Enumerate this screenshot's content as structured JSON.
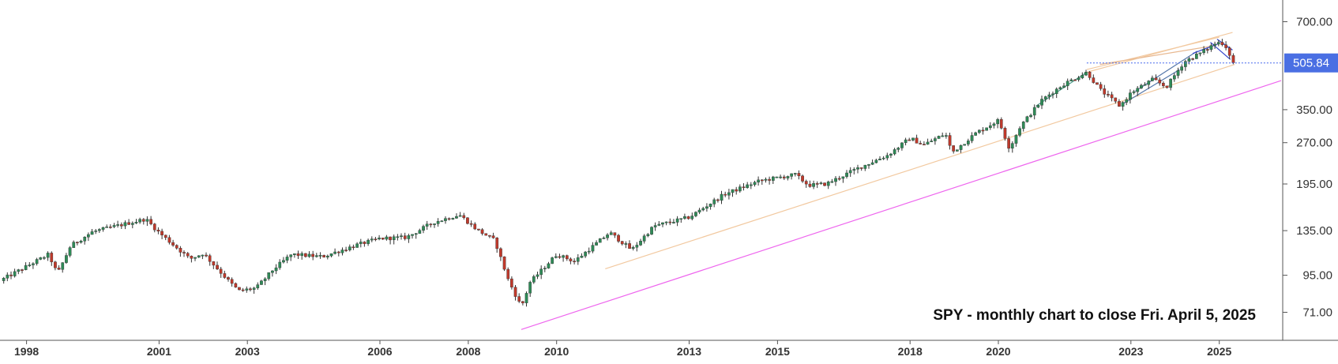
{
  "chart_data": {
    "type": "candlestick",
    "title": "",
    "annotation": "SPY - monthly chart to close Fri. April 5, 2025",
    "y_scale": "log",
    "ylim": [
      58,
      800
    ],
    "xlim": [
      1997.4,
      2026.4
    ],
    "y_ticks": [
      700,
      505.84,
      350,
      270,
      195,
      135,
      95,
      71
    ],
    "y_tick_labels": [
      "700.00",
      "505.84",
      "350.00",
      "270.00",
      "195.00",
      "135.00",
      "95.00",
      "71.00"
    ],
    "x_ticks": [
      1998,
      2001,
      2003,
      2006,
      2008,
      2010,
      2013,
      2015,
      2018,
      2020,
      2023,
      2025
    ],
    "x_tick_labels": [
      "1998",
      "2001",
      "2003",
      "2006",
      "2008",
      "2010",
      "2013",
      "2015",
      "2018",
      "2020",
      "2023",
      "2025"
    ],
    "last_price": {
      "value": 505.84,
      "label": "505.84"
    },
    "price_path": [
      [
        1997.4,
        91
      ],
      [
        1998.5,
        112
      ],
      [
        1998.7,
        96
      ],
      [
        1999.0,
        120
      ],
      [
        1999.5,
        134
      ],
      [
        2000.2,
        142
      ],
      [
        2000.7,
        148
      ],
      [
        2001.0,
        133
      ],
      [
        2001.7,
        108
      ],
      [
        2002.0,
        113
      ],
      [
        2002.6,
        90
      ],
      [
        2002.8,
        84
      ],
      [
        2003.2,
        86
      ],
      [
        2003.6,
        100
      ],
      [
        2004.0,
        112
      ],
      [
        2004.7,
        110
      ],
      [
        2005.5,
        121
      ],
      [
        2006.0,
        127
      ],
      [
        2006.6,
        128
      ],
      [
        2007.2,
        144
      ],
      [
        2007.8,
        153
      ],
      [
        2008.2,
        136
      ],
      [
        2008.6,
        125
      ],
      [
        2008.9,
        92
      ],
      [
        2009.2,
        74
      ],
      [
        2009.4,
        90
      ],
      [
        2010.0,
        112
      ],
      [
        2010.4,
        106
      ],
      [
        2011.2,
        133
      ],
      [
        2011.7,
        116
      ],
      [
        2012.2,
        140
      ],
      [
        2013.0,
        150
      ],
      [
        2013.8,
        180
      ],
      [
        2014.6,
        200
      ],
      [
        2015.4,
        210
      ],
      [
        2015.7,
        193
      ],
      [
        2016.1,
        195
      ],
      [
        2016.8,
        220
      ],
      [
        2017.5,
        245
      ],
      [
        2018.0,
        280
      ],
      [
        2018.3,
        265
      ],
      [
        2018.8,
        290
      ],
      [
        2018.95,
        250
      ],
      [
        2019.5,
        292
      ],
      [
        2020.0,
        322
      ],
      [
        2020.25,
        258
      ],
      [
        2020.5,
        308
      ],
      [
        2021.0,
        380
      ],
      [
        2021.5,
        430
      ],
      [
        2022.0,
        470
      ],
      [
        2022.3,
        410
      ],
      [
        2022.75,
        360
      ],
      [
        2023.0,
        400
      ],
      [
        2023.5,
        445
      ],
      [
        2023.8,
        418
      ],
      [
        2024.2,
        510
      ],
      [
        2024.6,
        550
      ],
      [
        2024.95,
        595
      ],
      [
        2025.1,
        590
      ],
      [
        2025.2,
        560
      ],
      [
        2025.3,
        505.84
      ]
    ],
    "trendlines": [
      {
        "color": "#ee66ee",
        "from": [
          2009.2,
          62
        ],
        "to": [
          2026.4,
          440
        ]
      },
      {
        "color": "#f2c9a0",
        "from": [
          2011.1,
          100
        ],
        "to": [
          2025.35,
          500
        ]
      },
      {
        "color": "#f2c9a0",
        "from": [
          2022.0,
          470
        ],
        "to": [
          2025.3,
          643
        ]
      },
      {
        "color": "#f2c9a0",
        "from": [
          2022.0,
          480
        ],
        "to": [
          2025.0,
          620
        ]
      },
      {
        "color": "#e8b890",
        "from": [
          2022.3,
          500
        ],
        "to": [
          2024.9,
          580
        ]
      },
      {
        "color": "#4a9a8a",
        "from": [
          2020.85,
          360
        ],
        "to": [
          2022.0,
          470
        ]
      },
      {
        "color": "#5577aa",
        "from": [
          2022.8,
          365
        ],
        "to": [
          2024.1,
          480
        ]
      },
      {
        "color": "#5577aa",
        "from": [
          2023.1,
          405
        ],
        "to": [
          2024.5,
          555
        ]
      },
      {
        "color": "#3344cc",
        "from": [
          2024.8,
          595
        ],
        "to": [
          2025.25,
          520
        ]
      },
      {
        "color": "#3344cc",
        "from": [
          2024.95,
          610
        ],
        "to": [
          2025.3,
          560
        ]
      },
      {
        "color": "#3344cc",
        "from": [
          2025.0,
          590
        ],
        "to": [
          2024.4,
          545
        ]
      }
    ],
    "price_line": {
      "from_x": 2022.0,
      "to_x": 2026.4,
      "y": 505.84,
      "color": "#4466ee"
    },
    "up_color": "#2e8b57",
    "down_color": "#c0392b",
    "wick_color": "#333333",
    "axis_label_bg": "#4a6fe3",
    "grid": false
  }
}
